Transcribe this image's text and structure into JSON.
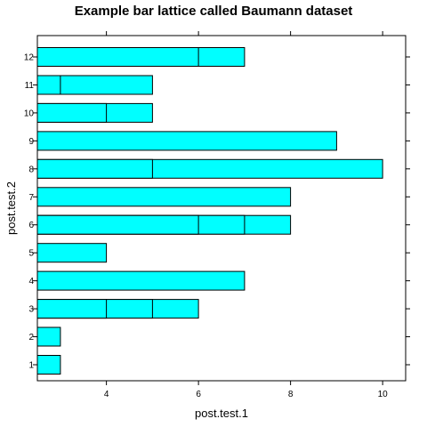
{
  "chart_data": {
    "type": "bar",
    "orientation": "horizontal",
    "stacked_overlay": true,
    "title": "Example bar lattice called Baumann dataset",
    "xlabel": "post.test.1",
    "ylabel": "post.test.2",
    "xlim": [
      2.5,
      10.5
    ],
    "x_ticks": [
      "4",
      "6",
      "8",
      "10"
    ],
    "categories": [
      "1",
      "2",
      "3",
      "4",
      "5",
      "6",
      "7",
      "8",
      "9",
      "10",
      "11",
      "12"
    ],
    "segments": [
      [
        3
      ],
      [
        3
      ],
      [
        4,
        5,
        6
      ],
      [
        7
      ],
      [
        4
      ],
      [
        6,
        7,
        8
      ],
      [
        8
      ],
      [
        5,
        10
      ],
      [
        9
      ],
      [
        4,
        5
      ],
      [
        3,
        5
      ],
      [
        6,
        7
      ]
    ],
    "bar_color": "#00FFFF",
    "border_color": "#000000",
    "grid": false
  }
}
